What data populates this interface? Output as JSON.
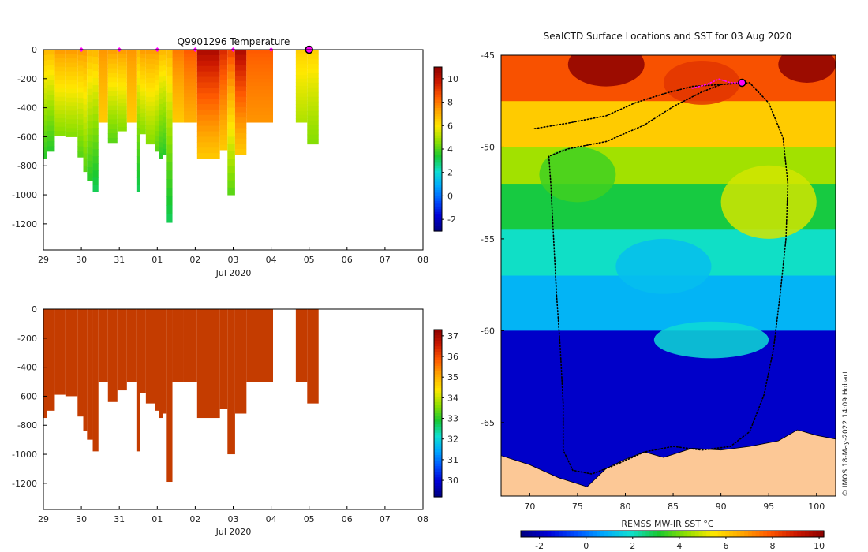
{
  "colors": {
    "ramp": [
      "#00007f",
      "#0000d6",
      "#0050ff",
      "#00a8ff",
      "#10e0d0",
      "#18c832",
      "#8ee000",
      "#ffe800",
      "#ffa800",
      "#ff5a00",
      "#cc1800",
      "#8c0000"
    ],
    "land": "#fcc896",
    "track": "#000000",
    "marker": "#ff00ff",
    "salinity": "#c43c00"
  },
  "chart_data": [
    {
      "type": "heatmap",
      "id": "temperature",
      "title": "Q9901296  Temperature",
      "xlabel": "Jul 2020",
      "ylabel": "",
      "x_ticks": [
        "29",
        "30",
        "31",
        "01",
        "02",
        "03",
        "04",
        "05",
        "06",
        "07",
        "08"
      ],
      "x_range_days": [
        0,
        10
      ],
      "y_ticks": [
        0,
        -200,
        -400,
        -600,
        -800,
        -1000,
        -1200
      ],
      "y_range": [
        -1380,
        0
      ],
      "colorbar": {
        "ticks": [
          -2,
          0,
          2,
          4,
          6,
          8,
          10
        ],
        "range": [
          -3,
          11
        ]
      },
      "surface_markers_day": [
        1,
        2,
        3,
        4,
        5,
        6,
        7
      ],
      "current_marker_day": 7,
      "profiles": [
        {
          "start": 0.0,
          "end": 0.1,
          "depth": 750,
          "shallow": 7,
          "deep": 3.5
        },
        {
          "start": 0.1,
          "end": 0.3,
          "depth": 700,
          "shallow": 7,
          "deep": 3.5
        },
        {
          "start": 0.3,
          "end": 0.6,
          "depth": 590,
          "shallow": 7.5,
          "deep": 4.5
        },
        {
          "start": 0.6,
          "end": 0.9,
          "depth": 600,
          "shallow": 7.5,
          "deep": 4.5
        },
        {
          "start": 0.9,
          "end": 1.05,
          "depth": 740,
          "shallow": 7.5,
          "deep": 4
        },
        {
          "start": 1.05,
          "end": 1.15,
          "depth": 840,
          "shallow": 7.5,
          "deep": 4
        },
        {
          "start": 1.15,
          "end": 1.3,
          "depth": 900,
          "shallow": 7,
          "deep": 3.5
        },
        {
          "start": 1.3,
          "end": 1.45,
          "depth": 980,
          "shallow": 7,
          "deep": 3
        },
        {
          "start": 1.45,
          "end": 1.7,
          "depth": 500,
          "shallow": 7.5,
          "deep": 6.5
        },
        {
          "start": 1.7,
          "end": 1.95,
          "depth": 640,
          "shallow": 7.5,
          "deep": 4
        },
        {
          "start": 1.95,
          "end": 2.2,
          "depth": 560,
          "shallow": 7.5,
          "deep": 4.5
        },
        {
          "start": 2.2,
          "end": 2.45,
          "depth": 500,
          "shallow": 7.5,
          "deep": 6.5
        },
        {
          "start": 2.45,
          "end": 2.55,
          "depth": 980,
          "shallow": 7,
          "deep": 3
        },
        {
          "start": 2.55,
          "end": 2.7,
          "depth": 580,
          "shallow": 7.5,
          "deep": 4.5
        },
        {
          "start": 2.7,
          "end": 2.95,
          "depth": 650,
          "shallow": 7.5,
          "deep": 4.5
        },
        {
          "start": 2.95,
          "end": 3.05,
          "depth": 700,
          "shallow": 7.5,
          "deep": 4
        },
        {
          "start": 3.05,
          "end": 3.15,
          "depth": 750,
          "shallow": 7,
          "deep": 3.5
        },
        {
          "start": 3.15,
          "end": 3.25,
          "depth": 720,
          "shallow": 7,
          "deep": 3.5
        },
        {
          "start": 3.25,
          "end": 3.4,
          "depth": 1190,
          "shallow": 7,
          "deep": 3
        },
        {
          "start": 3.4,
          "end": 3.7,
          "depth": 500,
          "shallow": 8,
          "deep": 6.5
        },
        {
          "start": 3.7,
          "end": 4.05,
          "depth": 500,
          "shallow": 8.5,
          "deep": 7
        },
        {
          "start": 4.05,
          "end": 4.65,
          "depth": 750,
          "shallow": 10.5,
          "deep": 6.5
        },
        {
          "start": 4.65,
          "end": 4.85,
          "depth": 690,
          "shallow": 9.5,
          "deep": 6.5
        },
        {
          "start": 4.85,
          "end": 5.05,
          "depth": 1000,
          "shallow": 9,
          "deep": 4
        },
        {
          "start": 5.05,
          "end": 5.35,
          "depth": 720,
          "shallow": 10.5,
          "deep": 6.5
        },
        {
          "start": 5.35,
          "end": 6.05,
          "depth": 500,
          "shallow": 8.5,
          "deep": 7.5
        },
        {
          "start": 6.65,
          "end": 6.95,
          "depth": 500,
          "shallow": 6.5,
          "deep": 5
        },
        {
          "start": 6.95,
          "end": 7.25,
          "depth": 650,
          "shallow": 6.5,
          "deep": 4.5
        }
      ]
    },
    {
      "type": "heatmap",
      "id": "salinity",
      "title": "",
      "xlabel": "Jul 2020",
      "x_ticks": [
        "29",
        "30",
        "31",
        "01",
        "02",
        "03",
        "04",
        "05",
        "06",
        "07",
        "08"
      ],
      "y_ticks": [
        0,
        -200,
        -400,
        -600,
        -800,
        -1000,
        -1200
      ],
      "y_range": [
        -1380,
        0
      ],
      "colorbar": {
        "ticks": [
          30,
          31,
          32,
          33,
          34,
          35,
          36,
          37
        ],
        "range": [
          29.2,
          37.3
        ]
      },
      "fill_value": 36.3,
      "uses_profiles_from": "temperature"
    },
    {
      "type": "heatmap",
      "id": "sst_map",
      "title": "SealCTD Surface Locations and SST for 03 Aug 2020",
      "xlabel": "",
      "colorbar_label": "REMSS MW-IR SST °C",
      "x_ticks": [
        70,
        75,
        80,
        85,
        90,
        95,
        100
      ],
      "y_ticks": [
        -45,
        -50,
        -55,
        -60,
        -65
      ],
      "lon_range": [
        67,
        102
      ],
      "lat_range": [
        -69,
        -45
      ],
      "colorbar": {
        "ticks": [
          -2,
          0,
          2,
          4,
          6,
          8,
          10
        ],
        "range": [
          -2.8,
          10.2
        ]
      },
      "sst_bands": [
        {
          "lat_top": -45.0,
          "lat_bottom": -47.5,
          "temp": 8.0
        },
        {
          "lat_top": -47.5,
          "lat_bottom": -50.0,
          "temp": 6.0
        },
        {
          "lat_top": -50.0,
          "lat_bottom": -52.0,
          "temp": 4.5
        },
        {
          "lat_top": -52.0,
          "lat_bottom": -54.5,
          "temp": 3.0
        },
        {
          "lat_top": -54.5,
          "lat_bottom": -57.0,
          "temp": 2.0
        },
        {
          "lat_top": -57.0,
          "lat_bottom": -60.0,
          "temp": 1.0
        },
        {
          "lat_top": -60.0,
          "lat_bottom": -69.0,
          "temp": -1.8
        }
      ],
      "warm_patches": [
        {
          "lon": 78,
          "lat": -45.5,
          "r_lon": 4,
          "r_lat": 1.2,
          "temp": 10.2
        },
        {
          "lon": 99,
          "lat": -45.5,
          "r_lon": 3,
          "r_lat": 1.0,
          "temp": 10.2
        },
        {
          "lon": 88,
          "lat": -46.5,
          "r_lon": 4,
          "r_lat": 1.2,
          "temp": 8.5
        },
        {
          "lon": 75,
          "lat": -51.5,
          "r_lon": 4,
          "r_lat": 1.5,
          "temp": 3.5
        },
        {
          "lon": 95,
          "lat": -53.0,
          "r_lon": 5,
          "r_lat": 2.0,
          "temp": 5.0
        },
        {
          "lon": 84,
          "lat": -56.5,
          "r_lon": 5,
          "r_lat": 1.5,
          "temp": 1.2
        },
        {
          "lon": 89,
          "lat": -60.5,
          "r_lon": 6,
          "r_lat": 1.0,
          "temp": 1.8
        }
      ],
      "coast": [
        [
          67,
          -66.8
        ],
        [
          70,
          -67.3
        ],
        [
          73,
          -68.0
        ],
        [
          76,
          -68.5
        ],
        [
          78,
          -67.5
        ],
        [
          80,
          -67.0
        ],
        [
          82,
          -66.6
        ],
        [
          84,
          -66.9
        ],
        [
          87,
          -66.4
        ],
        [
          90,
          -66.5
        ],
        [
          93,
          -66.3
        ],
        [
          96,
          -66.0
        ],
        [
          98,
          -65.4
        ],
        [
          100,
          -65.7
        ],
        [
          102,
          -65.9
        ]
      ],
      "track": [
        [
          70.5,
          -49.0
        ],
        [
          74,
          -48.7
        ],
        [
          78,
          -48.3
        ],
        [
          81,
          -47.6
        ],
        [
          84,
          -47.1
        ],
        [
          87,
          -46.7
        ],
        [
          90,
          -46.6
        ],
        [
          93,
          -46.5
        ],
        [
          95,
          -47.6
        ],
        [
          96.5,
          -49.5
        ],
        [
          97,
          -52
        ],
        [
          96.8,
          -55
        ],
        [
          96.2,
          -58
        ],
        [
          95.5,
          -61
        ],
        [
          94.5,
          -63.5
        ],
        [
          93,
          -65.5
        ],
        [
          91,
          -66.3
        ],
        [
          88,
          -66.5
        ],
        [
          85,
          -66.3
        ],
        [
          82,
          -66.6
        ],
        [
          79,
          -67.3
        ],
        [
          76.5,
          -67.8
        ],
        [
          74.5,
          -67.6
        ],
        [
          73.5,
          -66.5
        ],
        [
          73.5,
          -64
        ],
        [
          73.2,
          -61
        ],
        [
          72.8,
          -58
        ],
        [
          72.5,
          -55
        ],
        [
          72.2,
          -52
        ],
        [
          72,
          -50.5
        ],
        [
          74,
          -50.1
        ],
        [
          78,
          -49.7
        ],
        [
          82,
          -48.8
        ],
        [
          85,
          -47.8
        ],
        [
          88,
          -47.0
        ],
        [
          90,
          -46.6
        ],
        [
          92,
          -46.5
        ]
      ],
      "recent_track": [
        [
          87,
          -46.8
        ],
        [
          88.5,
          -46.6
        ],
        [
          89.8,
          -46.3
        ],
        [
          91,
          -46.5
        ],
        [
          92.2,
          -46.5
        ]
      ],
      "current_position": {
        "lon": 92.2,
        "lat": -46.5
      }
    }
  ],
  "credit": "© IMOS 18-May-2022 14:09 Hobart"
}
